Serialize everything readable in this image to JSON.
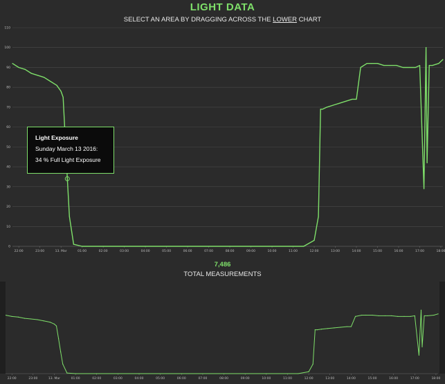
{
  "header": {
    "title": "LIGHT DATA",
    "subtitle_pre": "SELECT AN AREA BY DRAGGING ACROSS THE ",
    "subtitle_em": "LOWER",
    "subtitle_post": " CHART"
  },
  "summary": {
    "count": "7,486",
    "label": "TOTAL MEASUREMENTS"
  },
  "tooltip": {
    "title": "Light Exposure",
    "date": "Sunday March 13 2016:",
    "value": "34 % Full Light Exposure"
  },
  "colors": {
    "line": "#7fe06a",
    "background": "#2b2b2b",
    "grid": "#4a4a4a"
  },
  "chart_data": [
    {
      "type": "line",
      "x_tick_labels": [
        "22:00",
        "23:00",
        "13. Mar",
        "01:00",
        "02:00",
        "03:00",
        "04:00",
        "05:00",
        "06:00",
        "07:00",
        "08:00",
        "09:00",
        "10:00",
        "11:00",
        "12:00",
        "13:00",
        "14:00",
        "15:00",
        "16:00",
        "17:00",
        "18:00"
      ],
      "y_tick_labels": [
        "0",
        "10",
        "20",
        "30",
        "40",
        "50",
        "60",
        "70",
        "80",
        "90",
        "100",
        "110"
      ],
      "ylim": [
        0,
        110
      ],
      "xlim_hours": [
        21.7,
        42.1
      ],
      "grid": true,
      "series": [
        {
          "x": [
            21.7,
            22.0,
            22.3,
            22.6,
            22.9,
            23.2,
            23.5,
            23.8,
            24.0,
            24.1,
            24.2,
            24.3,
            24.4,
            24.6,
            25.0,
            26.0,
            28.0,
            30.0,
            32.0,
            34.0,
            35.5,
            36.0,
            36.2,
            36.3,
            36.4,
            36.6,
            36.9,
            37.2,
            37.5,
            37.8,
            38.0,
            38.2,
            38.5,
            38.7,
            39.0,
            39.3,
            39.6,
            39.9,
            40.2,
            40.5,
            40.8,
            41.0,
            41.2,
            41.3,
            41.35,
            41.45,
            41.6,
            41.9,
            42.1
          ],
          "y": [
            92,
            90,
            89,
            87,
            86,
            85,
            83,
            81,
            78,
            75,
            55,
            34,
            15,
            1,
            0,
            0,
            0,
            0,
            0,
            0,
            0,
            3,
            15,
            69,
            69,
            70,
            71,
            72,
            73,
            74,
            74,
            90,
            92,
            92,
            92,
            91,
            91,
            91,
            90,
            90,
            90,
            91,
            29,
            100,
            42,
            91,
            91,
            92,
            94
          ]
        }
      ]
    },
    {
      "type": "line",
      "x_tick_labels": [
        "22:00",
        "23:00",
        "13. Mar",
        "01:00",
        "02:00",
        "03:00",
        "04:00",
        "05:00",
        "06:00",
        "07:00",
        "08:00",
        "09:00",
        "10:00",
        "11:00",
        "12:00",
        "13:00",
        "14:00",
        "15:00",
        "16:00",
        "17:00",
        "18:00"
      ],
      "ylim": [
        0,
        110
      ],
      "xlim_hours": [
        21.7,
        42.1
      ],
      "grid": false,
      "series": [
        {
          "x": [
            21.7,
            22.0,
            22.3,
            22.6,
            22.9,
            23.2,
            23.5,
            23.8,
            24.0,
            24.1,
            24.2,
            24.3,
            24.4,
            24.6,
            25.0,
            26.0,
            28.0,
            30.0,
            32.0,
            34.0,
            35.5,
            36.0,
            36.2,
            36.3,
            36.4,
            36.6,
            36.9,
            37.2,
            37.5,
            37.8,
            38.0,
            38.2,
            38.5,
            38.7,
            39.0,
            39.3,
            39.6,
            39.9,
            40.2,
            40.5,
            40.8,
            41.0,
            41.2,
            41.3,
            41.35,
            41.45,
            41.6,
            41.9,
            42.1
          ],
          "y": [
            92,
            90,
            89,
            87,
            86,
            85,
            83,
            81,
            78,
            75,
            55,
            34,
            15,
            1,
            0,
            0,
            0,
            0,
            0,
            0,
            0,
            3,
            15,
            69,
            69,
            70,
            71,
            72,
            73,
            74,
            74,
            90,
            92,
            92,
            92,
            91,
            91,
            91,
            90,
            90,
            90,
            91,
            29,
            100,
            42,
            91,
            91,
            92,
            94
          ]
        }
      ]
    }
  ]
}
